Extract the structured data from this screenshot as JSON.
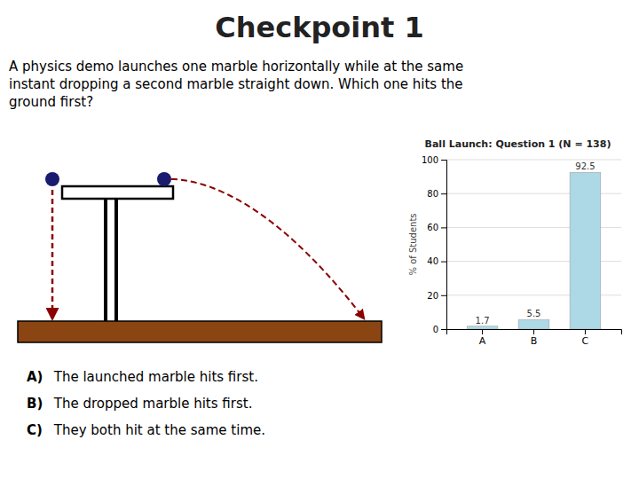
{
  "chart_data": {
    "type": "bar",
    "title": "Ball Launch: Question 1 (N = 138)",
    "ylabel": "% of Students",
    "categories": [
      "A",
      "B",
      "C"
    ],
    "values": [
      1.7,
      5.5,
      92.5
    ],
    "color": "#ADD8E6",
    "ylim": [
      0,
      100
    ],
    "yticks": [
      0,
      20,
      40,
      60,
      80,
      100
    ],
    "grid": true,
    "data_labels": true,
    "annotations": [
      "Checkpoint 1",
      "A physics demo launches one marble horizontally while at the same\ninstant dropping a second marble straight down. Which one hits the\nground first?",
      "A)",
      " The launched marble hits first.",
      "B)",
      " The dropped marble hits first.",
      "C)",
      " They both hit at the same time."
    ]
  }
}
